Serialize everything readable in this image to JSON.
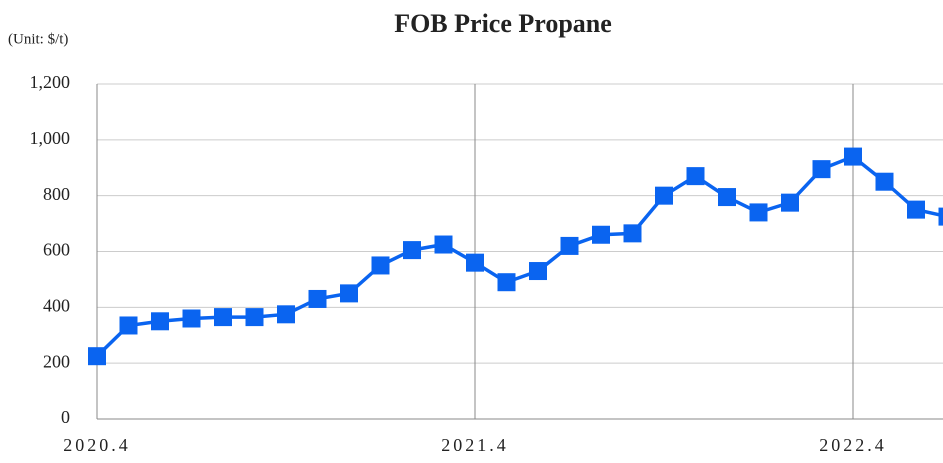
{
  "chart_data": {
    "type": "line",
    "title": "FOB Price Propane",
    "unit_note": "(Unit: $/t)",
    "categories": [
      "2020.4",
      null,
      null,
      null,
      null,
      null,
      null,
      null,
      null,
      null,
      null,
      null,
      "2021.4",
      null,
      null,
      null,
      null,
      null,
      null,
      null,
      null,
      null,
      null,
      null,
      "2022.4",
      null,
      null,
      null
    ],
    "series": [
      {
        "name": "FOB Price Propane",
        "color": "#0a64f0",
        "values": [
          225,
          335,
          350,
          360,
          365,
          365,
          375,
          430,
          450,
          550,
          605,
          625,
          560,
          490,
          530,
          620,
          660,
          665,
          800,
          870,
          795,
          740,
          775,
          895,
          940,
          850,
          750,
          725
        ]
      }
    ],
    "ylim": [
      0,
      1200
    ],
    "yticks": [
      0,
      200,
      400,
      600,
      800,
      {
        "value": 1000,
        "label": "1,000"
      },
      {
        "value": 1200,
        "label": "1,200"
      }
    ],
    "grid": true
  }
}
